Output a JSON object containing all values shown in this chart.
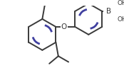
{
  "bg_color": "#ffffff",
  "bond_color": "#3a3a3a",
  "aromatic_color": "#4040a0",
  "line_width": 1.4,
  "aromatic_lw": 2.0,
  "fig_width": 1.74,
  "fig_height": 1.06,
  "dpi": 100,
  "text_color": "#3a3a3a",
  "font_size": 6.5,
  "O_label": "O",
  "B_label": "B",
  "OH1_label": "OH",
  "OH2_label": "OH"
}
